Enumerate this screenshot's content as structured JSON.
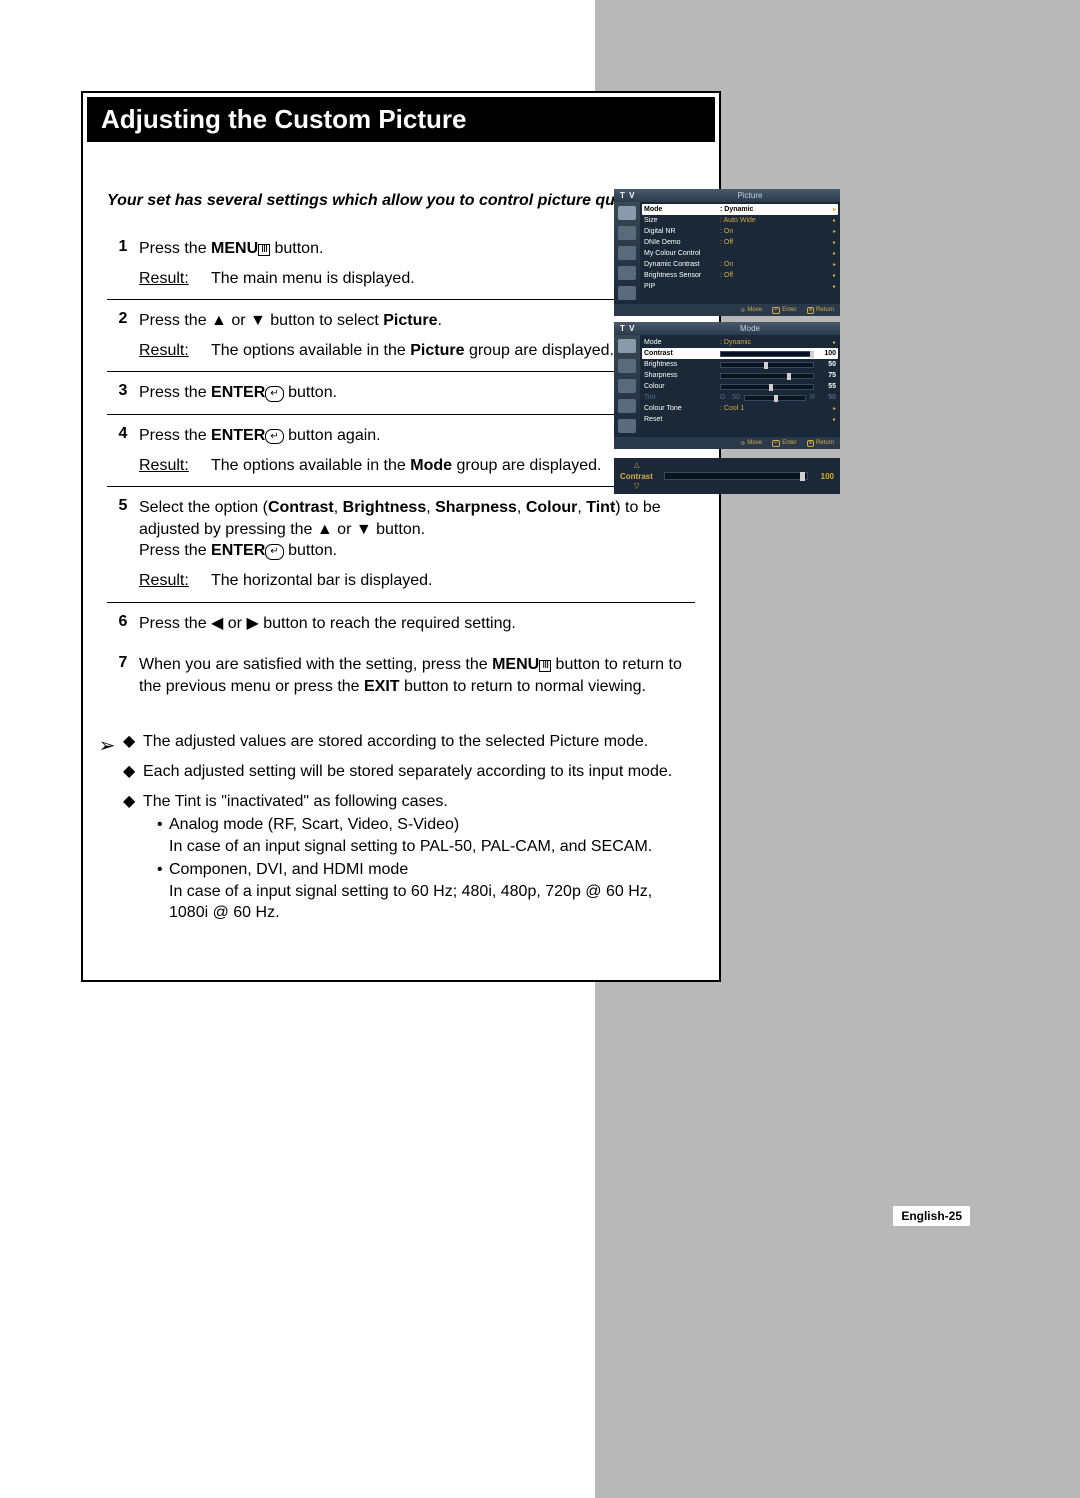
{
  "title": "Adjusting the Custom Picture",
  "intro": "Your set has several settings which allow you to control picture quality.",
  "steps": [
    {
      "n": "1",
      "body_pre": "Press the ",
      "bold1": "MENU",
      "icon": "menu",
      "body_post": " button.",
      "result": "The main menu is displayed."
    },
    {
      "n": "2",
      "body_pre": "Press the ▲ or ▼ button to select ",
      "bold1": "Picture",
      "body_post": ".",
      "result_pre": "The options available in the ",
      "result_bold": "Picture",
      "result_post": " group are displayed."
    },
    {
      "n": "3",
      "body_pre": "Press the ",
      "bold1": "ENTER",
      "icon": "enter",
      "body_post": " button."
    },
    {
      "n": "4",
      "body_pre": "Press the ",
      "bold1": "ENTER",
      "icon": "enter",
      "body_post": " button again.",
      "result_pre": "The options available in the ",
      "result_bold": "Mode",
      "result_post": " group are displayed."
    },
    {
      "n": "5",
      "custom": true
    },
    {
      "n": "6",
      "body_plain": "Press the ◀ or ▶ button to reach the required setting."
    },
    {
      "n": "7",
      "custom7": true
    }
  ],
  "step5": {
    "a": "Select the option (",
    "opts": "Contrast, Brightness, Sharpness, Colour, Tint",
    "b": ") to be adjusted by pressing the ▲ or ▼ button.",
    "c": "Press the ",
    "bold": "ENTER",
    "d": " button.",
    "result": "The horizontal bar is displayed."
  },
  "step7": {
    "a": "When you are satisfied with the setting, press the ",
    "b1": "MENU",
    "b": " button to return to the previous menu or press the ",
    "b2": "EXIT",
    "c": " button to return to normal viewing."
  },
  "result_label": "Result:",
  "notes": [
    {
      "text": "The adjusted values are stored according to the selected Picture mode."
    },
    {
      "text": "Each adjusted setting will be stored separately according to its input mode."
    },
    {
      "text": "The Tint is \"inactivated\" as following cases.",
      "subs": [
        {
          "head": "Analog mode (RF, Scart, Video, S-Video)",
          "body": "In case of an input signal setting to PAL-50, PAL-CAM, and SECAM."
        },
        {
          "head": "Componen, DVI, and HDMI mode",
          "body": "In case of a input signal setting to 60 Hz; 480i, 480p, 720p @ 60 Hz, 1080i @ 60 Hz."
        }
      ]
    }
  ],
  "page_num": "English-25",
  "osd1": {
    "tv": "T V",
    "title": "Picture",
    "rows": [
      {
        "l": "Mode",
        "v": ": Dynamic",
        "hl": true
      },
      {
        "l": "Size",
        "v": ": Auto Wide"
      },
      {
        "l": "Digital NR",
        "v": ": On"
      },
      {
        "l": "DNIe Demo",
        "v": ": Off"
      },
      {
        "l": "My Colour Control",
        "v": ""
      },
      {
        "l": "Dynamic Contrast",
        "v": ": On"
      },
      {
        "l": "Brightness Sensor",
        "v": ": Off"
      },
      {
        "l": "PIP",
        "v": ""
      }
    ],
    "footer": {
      "move": "Move",
      "enter": "Enter",
      "return": "Return"
    }
  },
  "osd2": {
    "tv": "T V",
    "title": "Mode",
    "rows": [
      {
        "l": "Mode",
        "v": ": Dynamic",
        "arrow": true
      },
      {
        "l": "Contrast",
        "slider": 100,
        "num": "100",
        "hl": true
      },
      {
        "l": "Brightness",
        "slider": 50,
        "num": "50"
      },
      {
        "l": "Sharpness",
        "slider": 75,
        "num": "75"
      },
      {
        "l": "Colour",
        "slider": 55,
        "num": "55"
      },
      {
        "l": "Tint",
        "tint": true,
        "g": "G",
        "gv": "50",
        "r": "R",
        "rv": "50",
        "dim": true
      },
      {
        "l": "Colour Tone",
        "v": ": Cool 1",
        "arrow": true
      },
      {
        "l": "Reset",
        "v": "",
        "arrow": true
      }
    ],
    "footer": {
      "move": "Move",
      "enter": "Enter",
      "return": "Return"
    }
  },
  "contrast_bar": {
    "label": "Contrast",
    "value": "100",
    "pct": 100
  }
}
